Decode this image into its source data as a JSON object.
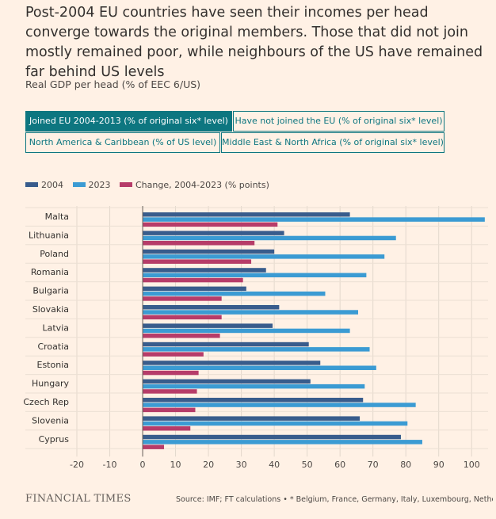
{
  "header": {
    "title": "Post-2004 EU countries have seen their incomes per head converge towards the original members. Those that did not join mostly remained poor, while neighbours of the US have remained far behind US levels",
    "subtitle": "Real GDP per head (% of EEC 6/US)"
  },
  "tabs": [
    {
      "label": "Joined EU 2004-2013 (% of original six* level)",
      "active": true
    },
    {
      "label": "Have not joined the EU (% of original six* level)",
      "active": false
    },
    {
      "label": "North America & Caribbean (% of US level)",
      "active": false
    },
    {
      "label": "Middle East & North Africa (% of original six* level)",
      "active": false
    }
  ],
  "colors": {
    "background": "#fff1e5",
    "accent": "#0d7680",
    "series_2004": "#385c8c",
    "series_2023": "#3b9bd3",
    "series_change": "#b63c69"
  },
  "chart_data": {
    "type": "bar",
    "orientation": "horizontal",
    "categories": [
      "Malta",
      "Lithuania",
      "Poland",
      "Romania",
      "Bulgaria",
      "Slovakia",
      "Latvia",
      "Croatia",
      "Estonia",
      "Hungary",
      "Czech Rep",
      "Slovenia",
      "Cyprus"
    ],
    "series": [
      {
        "name": "2004",
        "values": [
          63,
          43,
          40,
          37.5,
          31.5,
          41.5,
          39.5,
          50.5,
          54,
          51,
          67,
          66,
          78.5
        ]
      },
      {
        "name": "2023",
        "values": [
          104,
          77,
          73.5,
          68,
          55.5,
          65.5,
          63,
          69,
          71,
          67.5,
          83,
          80.5,
          85
        ]
      },
      {
        "name": "Change, 2004-2023 (% points)",
        "values": [
          41,
          34,
          33,
          30.5,
          24,
          24,
          23.5,
          18.5,
          17,
          16.5,
          16,
          14.5,
          6.5
        ]
      }
    ],
    "xlim": [
      -20,
      105
    ],
    "xticks": [
      "-20",
      "-10",
      "0",
      "10",
      "20",
      "30",
      "40",
      "50",
      "60",
      "70",
      "80",
      "90",
      "100"
    ],
    "grid": true,
    "legend": "top-left"
  },
  "footer": {
    "logo": "FINANCIAL TIMES",
    "source": "Source: IMF; FT calculations • * Belgium, France, Germany, Italy, Luxembourg, Netherlands"
  }
}
